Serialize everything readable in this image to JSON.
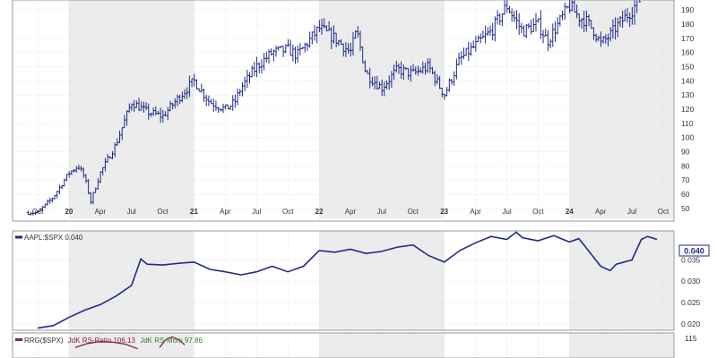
{
  "colors": {
    "price": "#1f2a8a",
    "ratio_line": "#1f2a8a",
    "rs_ratio": "#8b1f3a",
    "rs_mom": "#2e7d32",
    "band_shade": "#ececec",
    "grid": "#d4d4d4",
    "frame": "#9a9a9a",
    "text": "#333333",
    "value_box_text": "#1f2a8a"
  },
  "time_axis": {
    "labels": [
      {
        "text": "Oct",
        "t": 0
      },
      {
        "text": "20",
        "t": 1,
        "bold": true
      },
      {
        "text": "Apr",
        "t": 2
      },
      {
        "text": "Jul",
        "t": 3
      },
      {
        "text": "Oct",
        "t": 4
      },
      {
        "text": "21",
        "t": 5,
        "bold": true
      },
      {
        "text": "Apr",
        "t": 6
      },
      {
        "text": "Jul",
        "t": 7
      },
      {
        "text": "Oct",
        "t": 8
      },
      {
        "text": "22",
        "t": 9,
        "bold": true
      },
      {
        "text": "Apr",
        "t": 10
      },
      {
        "text": "Jul",
        "t": 11
      },
      {
        "text": "Oct",
        "t": 12
      },
      {
        "text": "23",
        "t": 13,
        "bold": true
      },
      {
        "text": "Apr",
        "t": 14
      },
      {
        "text": "Jul",
        "t": 15
      },
      {
        "text": "Oct",
        "t": 16
      },
      {
        "text": "24",
        "t": 17,
        "bold": true
      },
      {
        "text": "Apr",
        "t": 18
      },
      {
        "text": "Jul",
        "t": 19
      },
      {
        "text": "Oct",
        "t": 20
      }
    ]
  },
  "chart_data": [
    {
      "type": "line",
      "style": "ohlc-bars",
      "ylim": [
        43,
        197
      ],
      "ylabels": [
        "50",
        "60",
        "70",
        "80",
        "90",
        "100",
        "110",
        "120",
        "130",
        "140",
        "150",
        "160",
        "170",
        "180",
        "190"
      ],
      "yticks": [
        50,
        60,
        70,
        80,
        90,
        100,
        110,
        120,
        130,
        140,
        150,
        160,
        170,
        180,
        190
      ],
      "grid": true,
      "x": [
        0,
        0.5,
        1,
        1.3,
        1.5,
        1.7,
        2,
        2.5,
        3,
        3.5,
        4,
        4.5,
        5,
        5.5,
        6,
        6.3,
        6.5,
        7,
        7.5,
        8,
        8.3,
        9,
        9.5,
        10,
        10.2,
        10.5,
        11,
        11.5,
        12,
        12.5,
        13,
        13.5,
        14,
        14.5,
        15,
        15.3,
        15.5,
        16,
        16.3,
        16.5,
        17,
        17.3,
        17.5,
        17.8,
        18,
        18.3,
        18.5,
        19,
        19.3
      ],
      "values": [
        47,
        58,
        75,
        80,
        72,
        55,
        75,
        95,
        125,
        118,
        115,
        128,
        140,
        125,
        120,
        125,
        135,
        150,
        160,
        162,
        158,
        177,
        170,
        160,
        175,
        145,
        135,
        148,
        145,
        150,
        130,
        155,
        165,
        175,
        193,
        182,
        175,
        180,
        168,
        175,
        193,
        185,
        183,
        175,
        166,
        172,
        178,
        190,
        199
      ]
    },
    {
      "type": "line",
      "title": "AAPL:$SPX 0.040",
      "value_label": "0.040",
      "ylim": [
        0.0185,
        0.0418
      ],
      "ylabels": [
        "0.020",
        "0.025",
        "0.030",
        "0.035",
        "0.040"
      ],
      "yticks": [
        0.02,
        0.025,
        0.03,
        0.035
      ],
      "grid": true,
      "x": [
        0,
        0.5,
        1,
        1.5,
        2,
        2.5,
        3,
        3.3,
        3.5,
        4,
        4.5,
        5,
        5.5,
        6,
        6.5,
        7,
        7.5,
        8,
        8.5,
        9,
        9.5,
        10,
        10.5,
        11,
        11.5,
        12,
        12.5,
        13,
        13.5,
        14,
        14.5,
        15,
        15.3,
        15.5,
        16,
        16.5,
        17,
        17.3,
        17.5,
        18,
        18.3,
        18.5,
        19,
        19.3,
        19.5,
        19.8
      ],
      "values": [
        0.019,
        0.0196,
        0.0215,
        0.0232,
        0.0245,
        0.0265,
        0.029,
        0.0352,
        0.034,
        0.0338,
        0.0342,
        0.0345,
        0.0328,
        0.0322,
        0.0315,
        0.0322,
        0.0335,
        0.0322,
        0.0335,
        0.0372,
        0.0368,
        0.0375,
        0.0365,
        0.037,
        0.038,
        0.0385,
        0.036,
        0.0345,
        0.0372,
        0.039,
        0.0405,
        0.0398,
        0.0415,
        0.0402,
        0.0395,
        0.0407,
        0.0392,
        0.04,
        0.0382,
        0.0335,
        0.0325,
        0.034,
        0.035,
        0.0398,
        0.0405,
        0.0398
      ]
    },
    {
      "type": "line",
      "title_parts": [
        "RRG($SPX)",
        "JdK RS-Ratio 106.13",
        "JdK RS-Mom 97.86"
      ],
      "ylim": [
        100,
        119
      ],
      "ylabels": [
        "115"
      ],
      "yticks": [
        115
      ],
      "grid": true,
      "series": [
        {
          "name": "JdK RS-Ratio 106.13",
          "x": [
            1.2,
            1.6,
            2.0,
            2.4,
            2.8,
            3.2
          ],
          "values": [
            108,
            111,
            112.5,
            112,
            110.5,
            107
          ]
        },
        {
          "name": "JdK RS-Mom 97.86",
          "x": [
            3.9,
            4.1,
            4.3,
            4.5,
            4.7
          ],
          "values": [
            108,
            114,
            116,
            114,
            110
          ]
        }
      ]
    }
  ]
}
